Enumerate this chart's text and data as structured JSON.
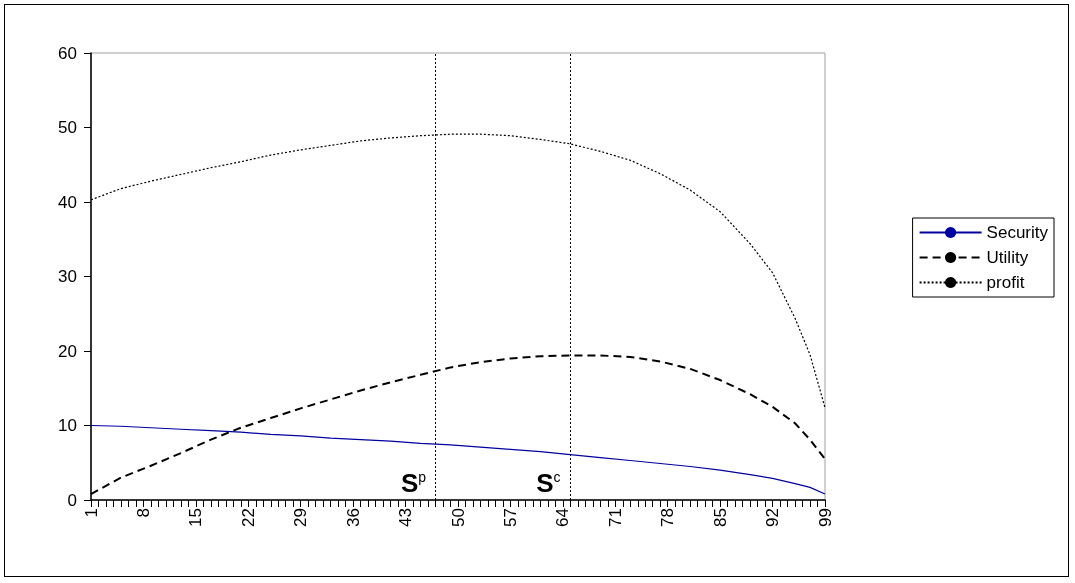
{
  "chart_data": {
    "type": "line",
    "x": [
      1,
      5,
      9,
      13,
      17,
      21,
      25,
      29,
      33,
      37,
      41,
      45,
      49,
      53,
      57,
      61,
      65,
      69,
      73,
      77,
      81,
      85,
      89,
      92,
      95,
      97,
      99
    ],
    "series": [
      {
        "name": "Security",
        "color": "#0000a0",
        "line_style": "solid",
        "values": [
          10.0,
          9.9,
          9.7,
          9.5,
          9.3,
          9.1,
          8.8,
          8.6,
          8.3,
          8.1,
          7.9,
          7.6,
          7.4,
          7.1,
          6.8,
          6.5,
          6.1,
          5.7,
          5.3,
          4.9,
          4.5,
          4.0,
          3.4,
          2.9,
          2.2,
          1.7,
          0.8
        ]
      },
      {
        "name": "Utility",
        "color": "#000000",
        "line_style": "dashed",
        "values": [
          0.8,
          3.0,
          4.6,
          6.3,
          8.1,
          9.7,
          11.0,
          12.3,
          13.5,
          14.7,
          15.8,
          16.8,
          17.8,
          18.5,
          19.0,
          19.3,
          19.4,
          19.4,
          19.2,
          18.6,
          17.6,
          16.1,
          14.2,
          12.5,
          10.3,
          8.1,
          5.5
        ]
      },
      {
        "name": "profit",
        "color": "#000000",
        "line_style": "dotted",
        "values": [
          40.3,
          41.8,
          42.8,
          43.7,
          44.6,
          45.4,
          46.3,
          47.0,
          47.6,
          48.2,
          48.6,
          48.9,
          49.1,
          49.1,
          48.9,
          48.4,
          47.8,
          46.8,
          45.6,
          43.8,
          41.6,
          38.7,
          34.4,
          30.5,
          24.4,
          19.5,
          12.4
        ]
      }
    ],
    "xlim": [
      1,
      99
    ],
    "xticks": [
      1,
      {
        "value": 2,
        "label": null
      },
      {
        "value": 3,
        "label": null
      },
      {
        "value": 4,
        "label": null
      },
      {
        "value": 5,
        "label": null
      },
      {
        "value": 6,
        "label": null
      },
      {
        "value": 7,
        "label": null
      },
      8,
      {
        "value": 9,
        "label": null
      },
      {
        "value": 10,
        "label": null
      },
      {
        "value": 11,
        "label": null
      },
      {
        "value": 12,
        "label": null
      },
      {
        "value": 13,
        "label": null
      },
      {
        "value": 14,
        "label": null
      },
      15,
      {
        "value": 16,
        "label": null
      },
      {
        "value": 17,
        "label": null
      },
      {
        "value": 18,
        "label": null
      },
      {
        "value": 19,
        "label": null
      },
      {
        "value": 20,
        "label": null
      },
      {
        "value": 21,
        "label": null
      },
      22,
      {
        "value": 23,
        "label": null
      },
      {
        "value": 24,
        "label": null
      },
      {
        "value": 25,
        "label": null
      },
      {
        "value": 26,
        "label": null
      },
      {
        "value": 27,
        "label": null
      },
      {
        "value": 28,
        "label": null
      },
      29,
      {
        "value": 30,
        "label": null
      },
      {
        "value": 31,
        "label": null
      },
      {
        "value": 32,
        "label": null
      },
      {
        "value": 33,
        "label": null
      },
      {
        "value": 34,
        "label": null
      },
      {
        "value": 35,
        "label": null
      },
      36,
      {
        "value": 37,
        "label": null
      },
      {
        "value": 38,
        "label": null
      },
      {
        "value": 39,
        "label": null
      },
      {
        "value": 40,
        "label": null
      },
      {
        "value": 41,
        "label": null
      },
      {
        "value": 42,
        "label": null
      },
      43,
      {
        "value": 44,
        "label": null
      },
      {
        "value": 45,
        "label": null
      },
      {
        "value": 46,
        "label": null
      },
      {
        "value": 47,
        "label": null
      },
      {
        "value": 48,
        "label": null
      },
      {
        "value": 49,
        "label": null
      },
      50,
      {
        "value": 51,
        "label": null
      },
      {
        "value": 52,
        "label": null
      },
      {
        "value": 53,
        "label": null
      },
      {
        "value": 54,
        "label": null
      },
      {
        "value": 55,
        "label": null
      },
      {
        "value": 56,
        "label": null
      },
      57,
      {
        "value": 58,
        "label": null
      },
      {
        "value": 59,
        "label": null
      },
      {
        "value": 60,
        "label": null
      },
      {
        "value": 61,
        "label": null
      },
      {
        "value": 62,
        "label": null
      },
      {
        "value": 63,
        "label": null
      },
      64,
      {
        "value": 65,
        "label": null
      },
      {
        "value": 66,
        "label": null
      },
      {
        "value": 67,
        "label": null
      },
      {
        "value": 68,
        "label": null
      },
      {
        "value": 69,
        "label": null
      },
      {
        "value": 70,
        "label": null
      },
      71,
      {
        "value": 72,
        "label": null
      },
      {
        "value": 73,
        "label": null
      },
      {
        "value": 74,
        "label": null
      },
      {
        "value": 75,
        "label": null
      },
      {
        "value": 76,
        "label": null
      },
      {
        "value": 77,
        "label": null
      },
      78,
      {
        "value": 79,
        "label": null
      },
      {
        "value": 80,
        "label": null
      },
      {
        "value": 81,
        "label": null
      },
      {
        "value": 82,
        "label": null
      },
      {
        "value": 83,
        "label": null
      },
      {
        "value": 84,
        "label": null
      },
      85,
      {
        "value": 86,
        "label": null
      },
      {
        "value": 87,
        "label": null
      },
      {
        "value": 88,
        "label": null
      },
      {
        "value": 89,
        "label": null
      },
      {
        "value": 90,
        "label": null
      },
      {
        "value": 91,
        "label": null
      },
      92,
      {
        "value": 93,
        "label": null
      },
      {
        "value": 94,
        "label": null
      },
      {
        "value": 95,
        "label": null
      },
      {
        "value": 96,
        "label": null
      },
      {
        "value": 97,
        "label": null
      },
      {
        "value": 98,
        "label": null
      },
      99
    ],
    "ylim": [
      0,
      60
    ],
    "yticks": [
      0,
      10,
      20,
      30,
      40,
      50,
      60
    ],
    "ref_lines": [
      {
        "axis": "x",
        "value": 47,
        "label": "S$^{p}$"
      },
      {
        "axis": "x",
        "value": 65,
        "label": "S$^{c}$"
      }
    ],
    "grid": false,
    "legend": "right",
    "marker": "none"
  }
}
